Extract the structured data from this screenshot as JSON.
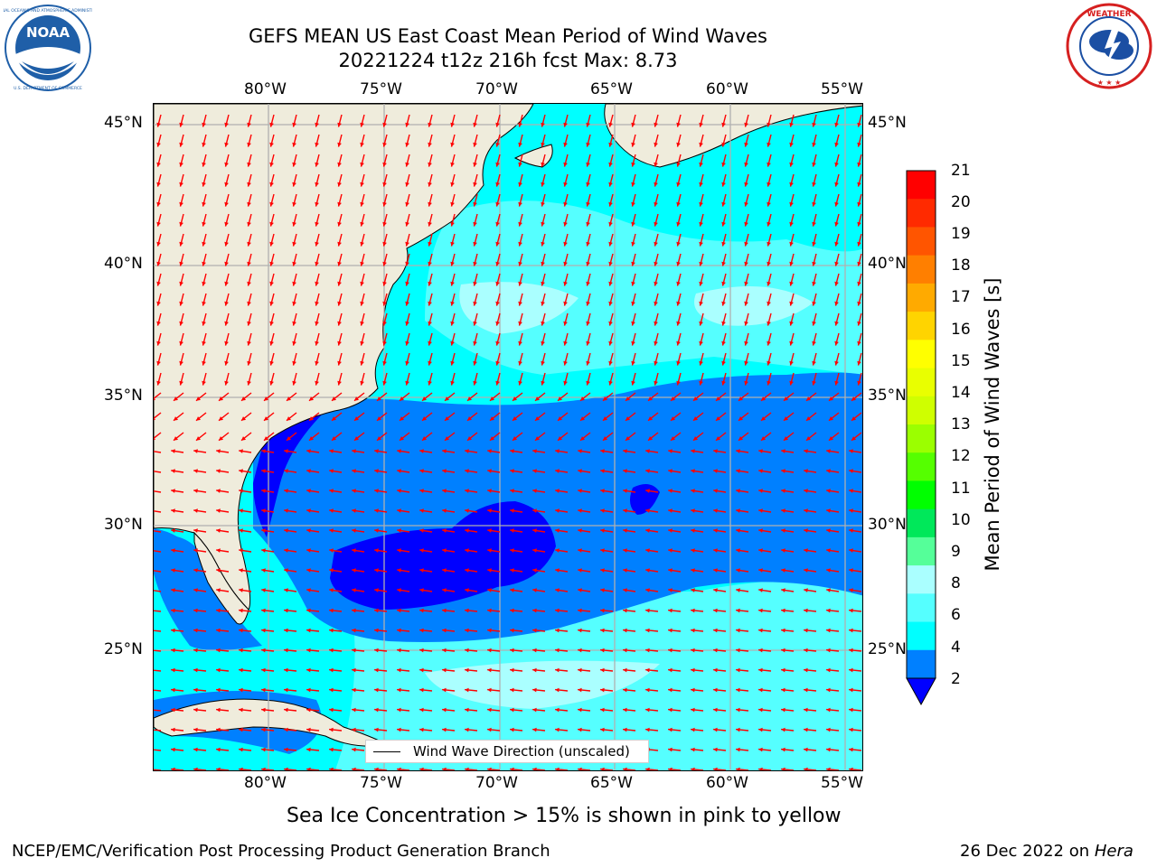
{
  "header": {
    "title_line1": "GEFS MEAN US East Coast Mean Period of Wind Waves",
    "title_line2": "20221224 t12z 216h fcst   Max: 8.73"
  },
  "logos": {
    "noaa": {
      "text": "NOAA",
      "ring_text": "NATIONAL OCEANIC AND ATMOSPHERIC ADMINISTRATION · U.S. DEPARTMENT OF COMMERCE",
      "color": "#1f5fa8"
    },
    "nws": {
      "ring_text": "NATIONAL WEATHER SERVICE",
      "color": "#1b4fa3",
      "ring_color": "#d62020"
    }
  },
  "map": {
    "lon_ticks": [
      "80°W",
      "75°W",
      "70°W",
      "65°W",
      "60°W",
      "55°W"
    ],
    "lat_ticks": [
      "45°N",
      "40°N",
      "35°N",
      "30°N",
      "25°N"
    ],
    "lon_range": [
      -85,
      -54
    ],
    "lat_range": [
      20,
      46
    ],
    "land_color": "#efecdc",
    "arrow_color": "#ff0000",
    "grid": true,
    "legend_label": "Wind Wave Direction (unscaled)"
  },
  "colorbar": {
    "label": "Mean Period of Wind Waves [s]",
    "ticks": [
      "21",
      "20",
      "19",
      "18",
      "17",
      "16",
      "15",
      "14",
      "13",
      "12",
      "11",
      "10",
      "9",
      "8",
      "6",
      "4",
      "2"
    ],
    "colors": [
      "#ff0000",
      "#ff2a00",
      "#ff5500",
      "#ff7f00",
      "#ffaa00",
      "#ffd400",
      "#ffff00",
      "#e9ff00",
      "#cfff00",
      "#9bff00",
      "#55ff00",
      "#00ff00",
      "#00e85a",
      "#55ff99",
      "#aaffff",
      "#55ffff",
      "#00ffff",
      "#0080ff"
    ],
    "under_color": "#0000ff"
  },
  "footer": {
    "sea_ice_note": "Sea Ice Concentration > 15% is shown in pink to yellow",
    "credit": "NCEP/EMC/Verification Post Processing Product Generation Branch",
    "date": "26 Dec 2022 on ",
    "machine": "Hera"
  }
}
